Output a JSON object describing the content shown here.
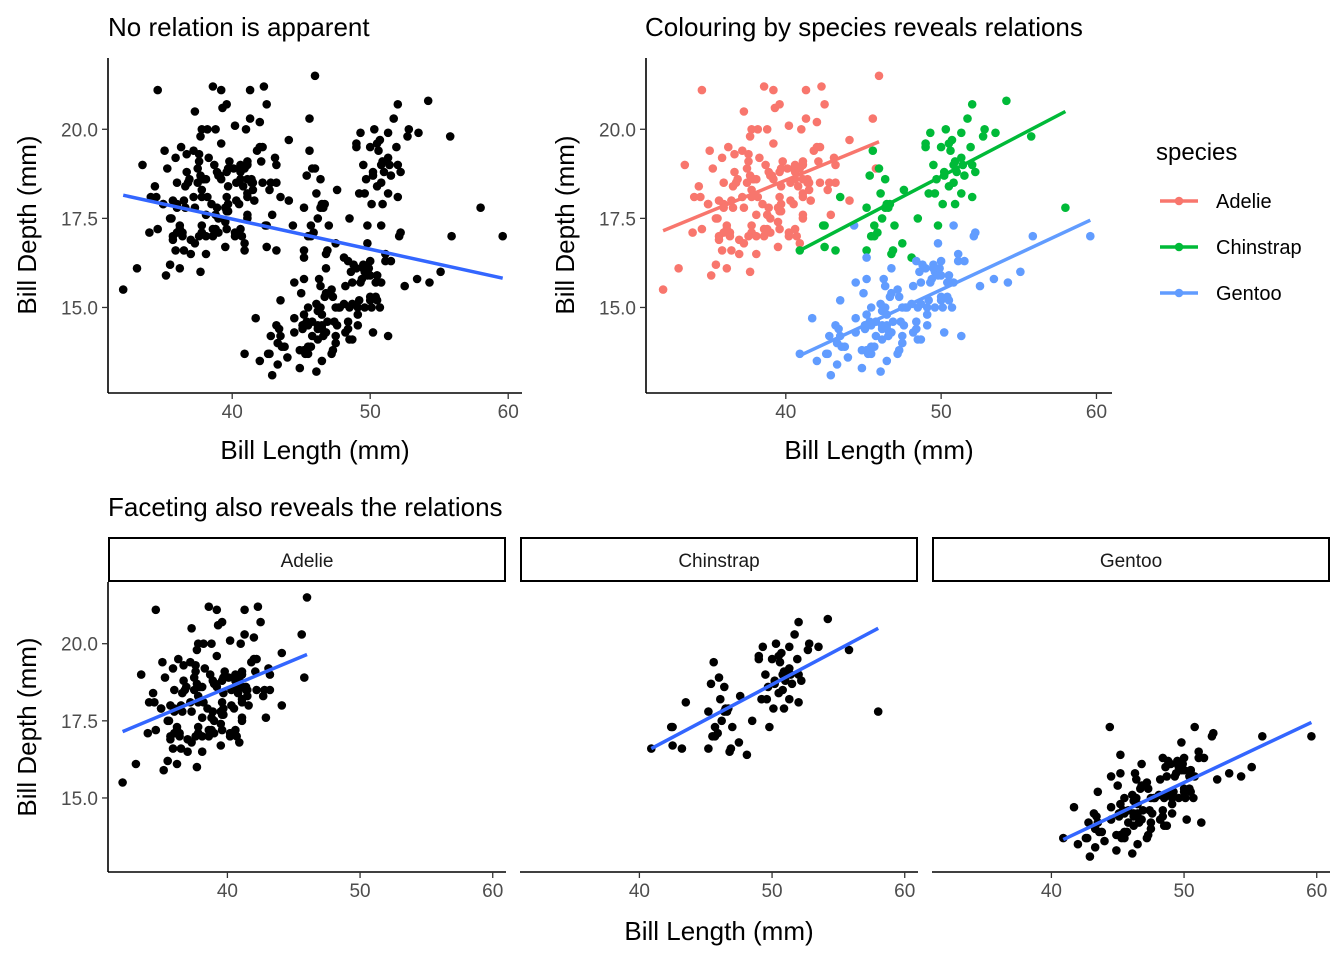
{
  "colors": {
    "point_black": "#000000",
    "fit_line": "#3366FF",
    "Adelie": "#F8766D",
    "Chinstrap": "#00BA38",
    "Gentoo": "#619CFF"
  },
  "chart_data": [
    {
      "type": "scatter",
      "title": "No relation is apparent",
      "xlabel": "Bill Length (mm)",
      "ylabel": "Bill Depth (mm)",
      "xticks": [
        "40",
        "50",
        "60"
      ],
      "yticks": [
        "15.0",
        "17.5",
        "20.0"
      ],
      "xlim": [
        31.0,
        61.0
      ],
      "ylim": [
        12.6,
        22.0
      ],
      "grid": false,
      "smooth": "lm",
      "fit": [
        {
          "x": [
            32.1,
            59.6
          ],
          "y": [
            18.15,
            15.82
          ]
        }
      ]
    },
    {
      "type": "scatter",
      "title": "Colouring  by species reveals relations",
      "xlabel": "Bill Length (mm)",
      "ylabel": "Bill Depth (mm)",
      "xticks": [
        "40",
        "50",
        "60"
      ],
      "yticks": [
        "15.0",
        "17.5",
        "20.0"
      ],
      "xlim": [
        31.0,
        61.0
      ],
      "ylim": [
        12.6,
        22.0
      ],
      "grid": false,
      "legend": {
        "title": "species",
        "position": "right",
        "entries": [
          "Adelie",
          "Chinstrap",
          "Gentoo"
        ]
      },
      "fit": [
        {
          "species": "Adelie",
          "x": [
            32.1,
            46.0
          ],
          "y": [
            17.15,
            19.65
          ]
        },
        {
          "species": "Chinstrap",
          "x": [
            40.9,
            58.0
          ],
          "y": [
            16.6,
            20.5
          ]
        },
        {
          "species": "Gentoo",
          "x": [
            40.9,
            59.6
          ],
          "y": [
            13.65,
            17.45
          ]
        }
      ]
    },
    {
      "type": "scatter",
      "title": "Faceting also reveals the relations",
      "xlabel": "Bill Length (mm)",
      "ylabel": "Bill Depth (mm)",
      "xticks": [
        "40",
        "50",
        "60"
      ],
      "yticks": [
        "15.0",
        "17.5",
        "20.0"
      ],
      "xlim": [
        31.0,
        61.0
      ],
      "ylim": [
        12.6,
        22.0
      ],
      "grid": false,
      "facets": [
        {
          "name": "Adelie",
          "fit": {
            "x": [
              32.1,
              46.0
            ],
            "y": [
              17.15,
              19.65
            ]
          }
        },
        {
          "name": "Chinstrap",
          "fit": {
            "x": [
              40.9,
              58.0
            ],
            "y": [
              16.6,
              20.5
            ]
          }
        },
        {
          "name": "Gentoo",
          "fit": {
            "x": [
              40.9,
              59.6
            ],
            "y": [
              13.65,
              17.45
            ]
          }
        }
      ]
    }
  ],
  "points": {
    "Adelie": [
      [
        39.1,
        18.7
      ],
      [
        39.5,
        17.4
      ],
      [
        40.3,
        18.0
      ],
      [
        36.7,
        19.3
      ],
      [
        39.3,
        20.6
      ],
      [
        38.9,
        17.8
      ],
      [
        39.2,
        19.6
      ],
      [
        34.1,
        18.1
      ],
      [
        42.0,
        20.2
      ],
      [
        37.8,
        17.1
      ],
      [
        37.8,
        17.3
      ],
      [
        41.1,
        17.6
      ],
      [
        38.6,
        21.2
      ],
      [
        34.6,
        21.1
      ],
      [
        36.6,
        17.8
      ],
      [
        38.7,
        19.0
      ],
      [
        42.5,
        20.7
      ],
      [
        34.4,
        18.4
      ],
      [
        46.0,
        21.5
      ],
      [
        37.8,
        18.3
      ],
      [
        37.7,
        18.7
      ],
      [
        35.9,
        19.2
      ],
      [
        38.2,
        18.1
      ],
      [
        38.8,
        17.2
      ],
      [
        35.3,
        18.9
      ],
      [
        40.6,
        18.6
      ],
      [
        40.5,
        17.9
      ],
      [
        37.9,
        18.6
      ],
      [
        40.5,
        18.9
      ],
      [
        39.5,
        16.7
      ],
      [
        37.2,
        18.1
      ],
      [
        39.5,
        17.8
      ],
      [
        40.9,
        18.9
      ],
      [
        36.4,
        17.0
      ],
      [
        39.2,
        21.1
      ],
      [
        38.8,
        20.0
      ],
      [
        42.2,
        18.5
      ],
      [
        37.6,
        19.3
      ],
      [
        39.8,
        19.1
      ],
      [
        36.5,
        18.0
      ],
      [
        40.8,
        18.4
      ],
      [
        36.0,
        18.5
      ],
      [
        44.1,
        19.7
      ],
      [
        37.0,
        16.9
      ],
      [
        39.6,
        18.8
      ],
      [
        41.1,
        19.0
      ],
      [
        37.5,
        18.9
      ],
      [
        36.0,
        17.9
      ],
      [
        42.3,
        21.2
      ],
      [
        39.6,
        17.7
      ],
      [
        40.1,
        18.9
      ],
      [
        35.0,
        17.9
      ],
      [
        42.0,
        19.5
      ],
      [
        34.5,
        18.1
      ],
      [
        41.4,
        18.6
      ],
      [
        39.0,
        17.5
      ],
      [
        40.6,
        18.8
      ],
      [
        36.5,
        16.6
      ],
      [
        37.6,
        19.1
      ],
      [
        35.7,
        16.9
      ],
      [
        41.3,
        21.1
      ],
      [
        37.6,
        17.0
      ],
      [
        41.1,
        18.2
      ],
      [
        36.4,
        17.1
      ],
      [
        41.6,
        18.0
      ],
      [
        35.5,
        16.2
      ],
      [
        41.1,
        19.1
      ],
      [
        35.9,
        16.6
      ],
      [
        41.8,
        19.4
      ],
      [
        33.5,
        19.0
      ],
      [
        39.7,
        18.4
      ],
      [
        39.6,
        17.2
      ],
      [
        45.8,
        18.9
      ],
      [
        35.5,
        17.5
      ],
      [
        42.8,
        18.5
      ],
      [
        40.9,
        16.8
      ],
      [
        37.2,
        19.4
      ],
      [
        36.2,
        16.1
      ],
      [
        42.1,
        19.1
      ],
      [
        34.6,
        17.2
      ],
      [
        42.9,
        17.6
      ],
      [
        36.7,
        18.8
      ],
      [
        35.1,
        19.4
      ],
      [
        37.3,
        17.8
      ],
      [
        41.3,
        20.3
      ],
      [
        36.3,
        19.5
      ],
      [
        36.9,
        18.6
      ],
      [
        38.3,
        19.2
      ],
      [
        38.9,
        18.8
      ],
      [
        35.7,
        18.0
      ],
      [
        41.1,
        18.1
      ],
      [
        34.0,
        17.1
      ],
      [
        39.6,
        18.1
      ],
      [
        36.2,
        17.3
      ],
      [
        40.8,
        18.9
      ],
      [
        38.1,
        18.6
      ],
      [
        40.3,
        18.5
      ],
      [
        33.1,
        16.1
      ],
      [
        43.2,
        18.5
      ],
      [
        35.0,
        17.9
      ],
      [
        41.0,
        20.0
      ],
      [
        37.7,
        16.0
      ],
      [
        37.8,
        20.0
      ],
      [
        37.9,
        18.6
      ],
      [
        39.7,
        18.9
      ],
      [
        38.6,
        17.2
      ],
      [
        38.2,
        20.0
      ],
      [
        38.1,
        17.0
      ],
      [
        43.2,
        19.0
      ],
      [
        38.1,
        16.5
      ],
      [
        45.6,
        20.3
      ],
      [
        39.7,
        17.7
      ],
      [
        42.2,
        19.5
      ],
      [
        39.6,
        20.7
      ],
      [
        42.7,
        18.3
      ],
      [
        38.6,
        17.0
      ],
      [
        37.3,
        20.5
      ],
      [
        35.7,
        17.0
      ],
      [
        41.1,
        18.6
      ],
      [
        36.2,
        17.2
      ],
      [
        37.7,
        19.8
      ],
      [
        40.2,
        17.0
      ],
      [
        41.4,
        18.5
      ],
      [
        35.2,
        15.9
      ],
      [
        40.6,
        19.0
      ],
      [
        38.8,
        17.6
      ],
      [
        41.5,
        18.3
      ],
      [
        39.0,
        17.1
      ],
      [
        44.1,
        18.0
      ],
      [
        38.5,
        17.9
      ],
      [
        43.1,
        19.2
      ],
      [
        36.8,
        18.5
      ],
      [
        37.5,
        18.5
      ],
      [
        38.1,
        17.6
      ],
      [
        41.1,
        17.5
      ],
      [
        35.6,
        17.5
      ],
      [
        40.2,
        20.1
      ],
      [
        37.0,
        16.5
      ],
      [
        39.7,
        17.9
      ],
      [
        40.2,
        17.1
      ],
      [
        40.6,
        17.2
      ],
      [
        32.1,
        15.5
      ],
      [
        40.7,
        17.0
      ],
      [
        37.3,
        16.8
      ],
      [
        39.0,
        18.7
      ],
      [
        39.2,
        18.6
      ],
      [
        36.6,
        18.4
      ],
      [
        36.0,
        17.8
      ],
      [
        37.8,
        18.1
      ],
      [
        36.0,
        17.1
      ],
      [
        41.5,
        18.5
      ]
    ],
    "Chinstrap": [
      [
        46.5,
        17.9
      ],
      [
        50.0,
        19.5
      ],
      [
        51.3,
        19.2
      ],
      [
        45.4,
        18.7
      ],
      [
        52.7,
        19.8
      ],
      [
        45.2,
        17.8
      ],
      [
        46.1,
        18.2
      ],
      [
        51.3,
        18.2
      ],
      [
        46.0,
        18.9
      ],
      [
        51.3,
        19.9
      ],
      [
        46.6,
        17.8
      ],
      [
        51.7,
        20.3
      ],
      [
        47.0,
        17.3
      ],
      [
        52.0,
        18.1
      ],
      [
        45.9,
        17.1
      ],
      [
        50.5,
        19.6
      ],
      [
        50.3,
        20.0
      ],
      [
        58.0,
        17.8
      ],
      [
        46.4,
        18.6
      ],
      [
        49.2,
        18.2
      ],
      [
        42.4,
        17.3
      ],
      [
        48.5,
        17.5
      ],
      [
        43.2,
        16.6
      ],
      [
        50.6,
        19.4
      ],
      [
        46.7,
        17.9
      ],
      [
        52.0,
        19.0
      ],
      [
        50.5,
        18.4
      ],
      [
        49.5,
        19.0
      ],
      [
        46.4,
        17.8
      ],
      [
        52.8,
        20.0
      ],
      [
        40.9,
        16.6
      ],
      [
        54.2,
        20.8
      ],
      [
        42.5,
        16.7
      ],
      [
        51.0,
        18.8
      ],
      [
        49.7,
        18.6
      ],
      [
        47.5,
        16.8
      ],
      [
        47.6,
        18.3
      ],
      [
        52.0,
        20.7
      ],
      [
        46.9,
        16.6
      ],
      [
        53.5,
        19.9
      ],
      [
        49.0,
        19.5
      ],
      [
        46.2,
        17.5
      ],
      [
        50.9,
        19.1
      ],
      [
        45.5,
        17.0
      ],
      [
        50.9,
        17.9
      ],
      [
        50.8,
        18.5
      ],
      [
        50.1,
        17.9
      ],
      [
        49.0,
        19.6
      ],
      [
        51.5,
        18.7
      ],
      [
        49.8,
        17.3
      ],
      [
        48.1,
        16.4
      ],
      [
        51.4,
        19.0
      ],
      [
        45.7,
        17.3
      ],
      [
        50.7,
        19.7
      ],
      [
        42.5,
        17.3
      ],
      [
        52.2,
        18.8
      ],
      [
        45.2,
        16.6
      ],
      [
        49.3,
        19.9
      ],
      [
        50.2,
        18.8
      ],
      [
        45.6,
        19.4
      ],
      [
        51.9,
        19.5
      ],
      [
        46.8,
        16.5
      ],
      [
        45.7,
        17.0
      ],
      [
        55.8,
        19.8
      ],
      [
        43.5,
        18.1
      ],
      [
        49.6,
        18.2
      ],
      [
        50.8,
        19.0
      ],
      [
        50.2,
        18.7
      ]
    ],
    "Gentoo": [
      [
        46.1,
        13.2
      ],
      [
        50.0,
        16.3
      ],
      [
        48.7,
        14.1
      ],
      [
        50.0,
        15.2
      ],
      [
        47.6,
        14.5
      ],
      [
        46.5,
        13.5
      ],
      [
        45.4,
        14.6
      ],
      [
        46.7,
        15.3
      ],
      [
        43.3,
        13.4
      ],
      [
        46.8,
        15.4
      ],
      [
        40.9,
        13.7
      ],
      [
        49.0,
        16.1
      ],
      [
        45.5,
        13.7
      ],
      [
        48.4,
        14.6
      ],
      [
        45.8,
        14.6
      ],
      [
        49.3,
        15.7
      ],
      [
        42.0,
        13.5
      ],
      [
        49.2,
        15.2
      ],
      [
        46.2,
        14.5
      ],
      [
        48.7,
        15.1
      ],
      [
        50.2,
        14.3
      ],
      [
        45.1,
        14.5
      ],
      [
        46.5,
        14.5
      ],
      [
        46.3,
        15.8
      ],
      [
        42.9,
        13.1
      ],
      [
        46.1,
        15.1
      ],
      [
        44.5,
        14.3
      ],
      [
        47.8,
        15.0
      ],
      [
        48.2,
        14.3
      ],
      [
        50.0,
        15.3
      ],
      [
        47.3,
        15.3
      ],
      [
        42.8,
        14.2
      ],
      [
        45.1,
        14.5
      ],
      [
        59.6,
        17.0
      ],
      [
        49.1,
        14.8
      ],
      [
        48.4,
        16.3
      ],
      [
        42.6,
        13.7
      ],
      [
        44.4,
        17.3
      ],
      [
        44.0,
        13.6
      ],
      [
        48.7,
        15.7
      ],
      [
        42.7,
        13.7
      ],
      [
        49.6,
        16.0
      ],
      [
        45.3,
        13.7
      ],
      [
        49.6,
        15.0
      ],
      [
        50.5,
        15.9
      ],
      [
        43.6,
        13.9
      ],
      [
        45.5,
        13.9
      ],
      [
        50.5,
        15.9
      ],
      [
        44.9,
        13.3
      ],
      [
        45.2,
        15.8
      ],
      [
        46.6,
        14.2
      ],
      [
        48.5,
        14.1
      ],
      [
        45.1,
        14.4
      ],
      [
        50.1,
        15.0
      ],
      [
        46.5,
        14.4
      ],
      [
        45.0,
        15.4
      ],
      [
        43.8,
        13.9
      ],
      [
        45.5,
        15.0
      ],
      [
        43.2,
        14.5
      ],
      [
        50.4,
        15.3
      ],
      [
        45.3,
        13.8
      ],
      [
        46.2,
        14.9
      ],
      [
        45.7,
        13.9
      ],
      [
        54.3,
        15.7
      ],
      [
        45.8,
        14.2
      ],
      [
        49.8,
        16.8
      ],
      [
        46.2,
        14.4
      ],
      [
        49.5,
        16.2
      ],
      [
        43.5,
        14.2
      ],
      [
        50.7,
        15.0
      ],
      [
        47.7,
        15.0
      ],
      [
        46.4,
        15.6
      ],
      [
        48.2,
        15.6
      ],
      [
        46.5,
        14.8
      ],
      [
        46.4,
        15.0
      ],
      [
        48.6,
        16.0
      ],
      [
        47.5,
        14.2
      ],
      [
        51.1,
        16.3
      ],
      [
        45.2,
        13.8
      ],
      [
        45.2,
        16.4
      ],
      [
        49.1,
        14.5
      ],
      [
        52.5,
        15.6
      ],
      [
        47.4,
        14.6
      ],
      [
        50.0,
        15.9
      ],
      [
        44.9,
        13.8
      ],
      [
        50.8,
        17.3
      ],
      [
        43.4,
        14.4
      ],
      [
        51.3,
        14.2
      ],
      [
        47.5,
        14.0
      ],
      [
        52.1,
        17.0
      ],
      [
        47.5,
        15.0
      ],
      [
        52.2,
        17.1
      ],
      [
        45.5,
        14.5
      ],
      [
        49.5,
        16.1
      ],
      [
        44.5,
        14.7
      ],
      [
        50.8,
        15.7
      ],
      [
        49.4,
        15.8
      ],
      [
        46.9,
        14.6
      ],
      [
        48.4,
        14.4
      ],
      [
        51.1,
        16.5
      ],
      [
        48.5,
        15.0
      ],
      [
        55.9,
        17.0
      ],
      [
        47.2,
        15.5
      ],
      [
        49.1,
        15.0
      ],
      [
        47.3,
        13.8
      ],
      [
        46.8,
        16.1
      ],
      [
        41.7,
        14.7
      ],
      [
        53.4,
        15.8
      ],
      [
        43.3,
        14.0
      ],
      [
        48.1,
        15.1
      ],
      [
        50.5,
        15.2
      ],
      [
        49.8,
        15.9
      ],
      [
        43.5,
        15.2
      ],
      [
        51.5,
        16.3
      ],
      [
        46.2,
        14.1
      ],
      [
        55.1,
        16.0
      ],
      [
        44.5,
        15.7
      ],
      [
        48.8,
        16.2
      ],
      [
        47.2,
        13.7
      ],
      [
        46.8,
        14.3
      ],
      [
        50.4,
        15.7
      ],
      [
        45.2,
        14.8
      ],
      [
        49.9,
        16.1
      ]
    ]
  }
}
